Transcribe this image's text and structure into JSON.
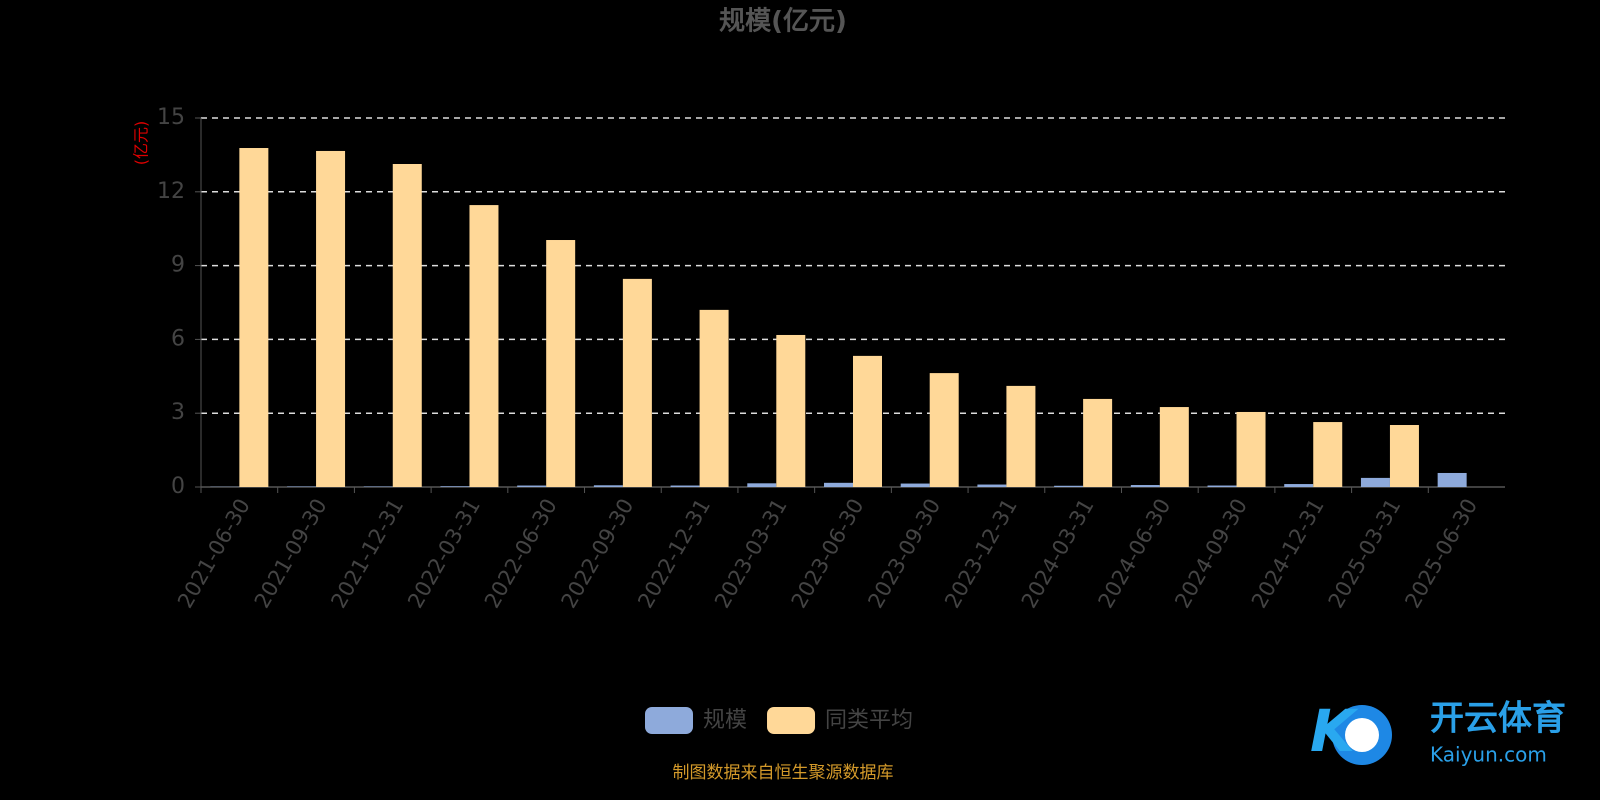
{
  "chart_data": {
    "type": "bar",
    "title": "规模(亿元)",
    "y_label": "(亿元)",
    "categories": [
      "2021-06-30",
      "2021-09-30",
      "2021-12-31",
      "2022-03-31",
      "2022-06-30",
      "2022-09-30",
      "2022-12-31",
      "2023-03-31",
      "2023-06-30",
      "2023-09-30",
      "2023-12-31",
      "2024-03-31",
      "2024-06-30",
      "2024-09-30",
      "2024-12-31",
      "2025-03-31",
      "2025-06-30"
    ],
    "series": [
      {
        "name": "规模",
        "color": "#8eaadb",
        "values": [
          0.01,
          0.02,
          0.02,
          0.03,
          0.06,
          0.07,
          0.06,
          0.15,
          0.17,
          0.14,
          0.1,
          0.05,
          0.08,
          0.06,
          0.12,
          0.37,
          0.57
        ]
      },
      {
        "name": "同类平均",
        "color": "#ffd898",
        "values": [
          13.78,
          13.66,
          13.13,
          11.46,
          10.04,
          8.46,
          7.2,
          6.18,
          5.33,
          4.63,
          4.11,
          3.58,
          3.25,
          3.05,
          2.64,
          2.52,
          null
        ]
      }
    ],
    "ylim": [
      0,
      15
    ],
    "yticks": [
      0,
      3,
      6,
      9,
      12,
      15
    ],
    "grid": true,
    "source": "制图数据来自恒生聚源数据库",
    "watermark": {
      "brand": "开云体育",
      "site": "Kaiyun.com"
    }
  }
}
